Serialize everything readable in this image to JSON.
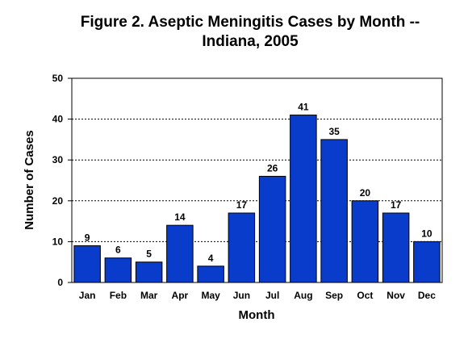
{
  "chart_data": {
    "type": "bar",
    "title_line1": "Figure 2.  Aseptic Meningitis Cases by Month --",
    "title_line2": "Indiana, 2005",
    "xlabel": "Month",
    "ylabel": "Number of Cases",
    "categories": [
      "Jan",
      "Feb",
      "Mar",
      "Apr",
      "May",
      "Jun",
      "Jul",
      "Aug",
      "Sep",
      "Oct",
      "Nov",
      "Dec"
    ],
    "values": [
      9,
      6,
      5,
      14,
      4,
      17,
      26,
      41,
      35,
      20,
      17,
      10
    ],
    "ylim": [
      0,
      50
    ],
    "yticks": [
      0,
      10,
      20,
      30,
      40,
      50
    ],
    "grid": "dotted horizontal",
    "legend": "none",
    "bar_color": "#0a3ccc"
  }
}
